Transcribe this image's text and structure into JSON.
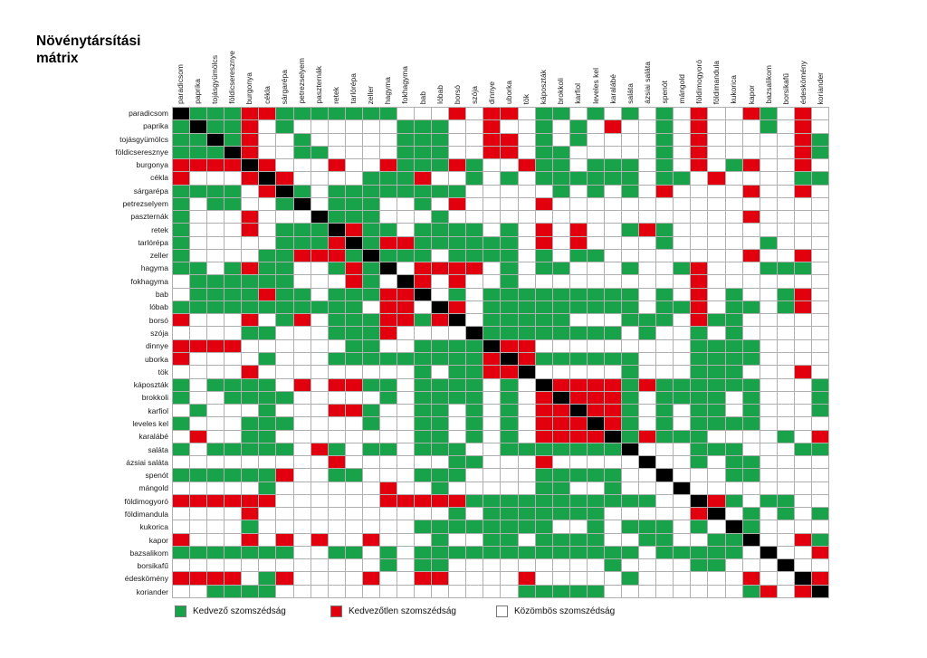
{
  "title": "Növénytársítási\nmátrix",
  "colors": {
    "favorable": "#18a24a",
    "unfavorable": "#e3000e",
    "neutral": "#ffffff",
    "self": "#000000",
    "gridline": "#b0b0b0"
  },
  "legend": [
    {
      "key": "favorable",
      "label": "Kedvező szomszédság"
    },
    {
      "key": "unfavorable",
      "label": "Kedvezőtlen szomszédság"
    },
    {
      "key": "neutral",
      "label": "Közömbös szomszédság"
    }
  ],
  "chart_data": {
    "type": "heatmap",
    "title": "Növénytársítási mátrix",
    "legend_position": "bottom",
    "encoding": {
      "G": "favorable (green)",
      "R": "unfavorable (red)",
      "W": "neutral (white)",
      "B": "self / diagonal (black)"
    },
    "categories": [
      "paradicsom",
      "paprika",
      "tojásgyümölcs",
      "földicseresznye",
      "burgonya",
      "cékla",
      "sárgarépa",
      "petrezselyem",
      "paszternák",
      "retek",
      "tarlórépa",
      "zeller",
      "hagyma",
      "fokhagyma",
      "bab",
      "lóbab",
      "borsó",
      "szója",
      "dinnye",
      "uborka",
      "tök",
      "káposzták",
      "brokkoli",
      "karfiol",
      "leveles kel",
      "karalábé",
      "saláta",
      "ázsiai saláta",
      "spenót",
      "mángold",
      "földimogyoró",
      "földimandula",
      "kukorica",
      "kapor",
      "bazsalikom",
      "borsikafű",
      "édeskömény",
      "koriander"
    ],
    "matrix": [
      "BGGGRRGGGGGGGWWWRWRRWGGWGWGWGWRWWRGWRW",
      "GBGGRWGWWWWWWGGGWWRWWGWGWRWWGWRWWWGWRW",
      "GGBGRWWGWWWWWGGGWWRRWGWGWWWWGWRWWWWWRG",
      "GGGBRWWGGWWWWGGGWWRRWGGWWWWWGWRWWWWWRG",
      "RRRRBRWWWRWWRGGGRGWWRGGWGGGWGWRWGRWWRW",
      "RWWWRBRWWWWGGGRWWGWGWGGGGGGWGGWRWWWWGG",
      "GGGGWRBGWGGGGGGGGWWWWWGWGWGWRWWWWRWWRW",
      "GWGGWWGBWGGGWWGWRWWWWRWWWWWWWWWWWWWWWW",
      "GWWWRWWWBGGGWWWGWWWWWWWWWWWWWWWWWRWWWW",
      "GWWWRWGGGBRGGWGGGGWGWRWRWWGRGWWWWWWWWW",
      "GWWWWWGGGRBGRRGGGGGGWRWRWWWWGWWWWWGWWW",
      "GWWWWGGRRRGBGGGWGGGGWGWGGWWWWWWWWRWWRW",
      "GGWGRGGWWGRGBWRRRRWGWGGWWWGWWGRWWWGGGW",
      "WGGGGGGWWWRGWBRWRWWGWWWWWWWWWWRWWWWWWW",
      "WGGGGRGGWGGGRRBWGWGGGGGGGGGWGWRWGWWGRW",
      "GGGGGGGGGGGWRRWBRWGGGGGGGGGWGGRWGGWGRW",
      "RWWWRWGRWGGGRRGRBWGGGGGWWWGGGWRGGWWWWW",
      "WWWWGGWWWGGGRWWWWBGGGGGGGGWGWWGWGWWWWW",
      "RRRRWWWWWWGGWWGGGGBRRWWWWWWWWWGGGGWWWW",
      "RWWWWGWWWGGGGGGGGGRBRGGGGGGWWWGGGGWWWW",
      "WWWWRWWWWWWWWWGWGGRRBWWWWWGWWWGGGWWWRW",
      "GWGGGGWRWRRGGWGGGGWGWBRRRRGRGGGGGGWWWG",
      "GWWGGGGWWWWWGWGGGGWGWRBRRRGWGGGGWGWWWG",
      "WGWWWGWWWRRGWWGGWGWGWRRBRRGWGWGGWGWWWG",
      "GWWWGGGWWWWGWWGGWGWGWRRRBRGWGWGGGGWWWW",
      "WRWWGGWWWWWWWWGGWGWGWRRRRBGRGGGWWWWGWR",
      "GWGGGGGWRGWGGWGGGWWGGGGGGGBWWWGGGWWWGG",
      "WWWWWWWWWRWWWWWWGGWWWRWWWWWBWWGWGGWWWW",
      "GGGGGGRWWGGWWWGGGWWWWGGGGGWWBWWWGGWWWW",
      "WWWWWGWWWWWWRWWGWWWWWGGWWGWWWBWWWWWWWW",
      "RRRRRRWWWWWWRRRRRGGGGGGGGGGGWWBRGWGGWW",
      "WWWWRWWWWWWWWWWWGWGGGGGGGWWWWWRBWGWGWG",
      "WWWWGWWWWWWWWWGGGGGGGGWWGWGGGWGWBGWWWW",
      "RWWWRWRWRWWRWWWGWWGGWGGGGWWGGWWGGBWWRG",
      "GGGGGGGWWGGWGWGGGGGGGGGGGGGWGGGGGWBWWR",
      "WWWWWWWWWWWWGWGGWWWWWWWWWGWWWWGGWWWBWW",
      "RRRRWGRWWWWRWWRRWWWWRWWWWWGWWWWWWRWWBR",
      "WWGGGGWWWWWWWWWWWWWWGGGGGWWWWWWWWGRWRB"
    ]
  }
}
